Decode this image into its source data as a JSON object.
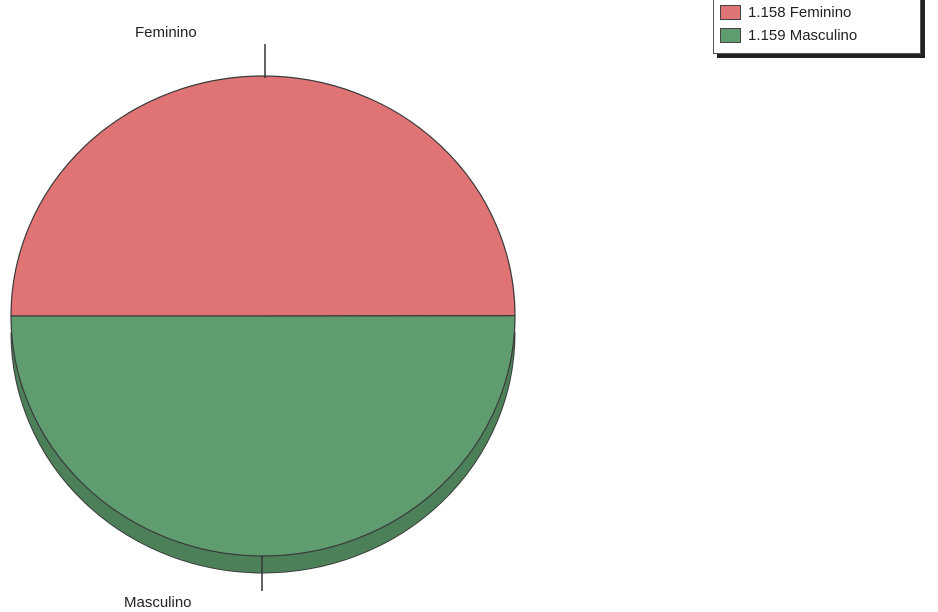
{
  "chart_data": {
    "type": "pie",
    "categories": [
      "Feminino",
      "Masculino"
    ],
    "values": [
      1158,
      1159
    ],
    "colors": {
      "Feminino": "#e07373",
      "Masculino": "#5f9c70",
      "Masculino_depth": "#4c8058",
      "outline": "#3a3a3a"
    },
    "slice_labels": [
      "Feminino",
      "Masculino"
    ],
    "legend": {
      "placement": "top-right",
      "entries": [
        {
          "label": "1.158 Feminino",
          "series": "Feminino"
        },
        {
          "label": "1.159 Masculino",
          "series": "Masculino"
        }
      ]
    }
  }
}
